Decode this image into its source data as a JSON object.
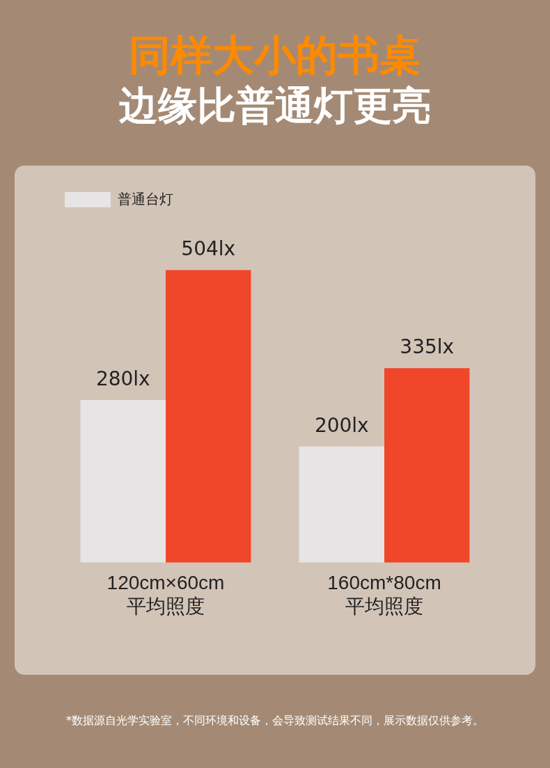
{
  "chart_data": {
    "type": "bar",
    "title": "同样大小的书桌",
    "subtitle": "边缘比普通灯更亮",
    "categories": [
      "120cm×60cm\n平均照度",
      "160cm*80cm\n平均照度"
    ],
    "series": [
      {
        "name": "普通台灯",
        "color": "#e6e4e4",
        "values": [
          280,
          200
        ],
        "value_labels": [
          "280lx",
          "200lx"
        ]
      },
      {
        "color": "#f0462a",
        "values": [
          504,
          335
        ],
        "value_labels": [
          "504lx",
          "335lx"
        ]
      }
    ],
    "legend": "top left",
    "grid": false,
    "annotations": [
      "*数据源自光学实验室，不同环境和设备，会导致测试结果不同，展示数据仅供参考。"
    ]
  }
}
